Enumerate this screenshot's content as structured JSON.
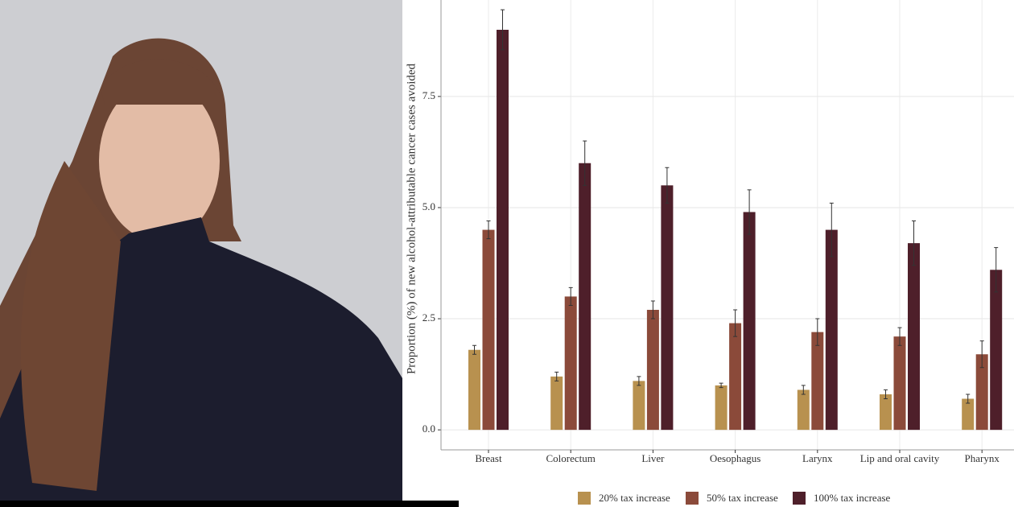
{
  "chart_data": {
    "type": "bar",
    "ylabel": "Proportion (%) of new alcohol-attributable cancer cases avoided",
    "categories": [
      "Breast",
      "Colorectum",
      "Liver",
      "Oesophagus",
      "Larynx",
      "Lip and oral cavity",
      "Pharynx"
    ],
    "series": [
      {
        "name": "20% tax increase",
        "color": "#b8914f",
        "values": [
          1.8,
          1.2,
          1.1,
          1.0,
          0.9,
          0.8,
          0.7
        ],
        "errors": [
          0.1,
          0.1,
          0.1,
          0.05,
          0.1,
          0.1,
          0.1
        ]
      },
      {
        "name": "50% tax increase",
        "color": "#8b4a3a",
        "values": [
          4.5,
          3.0,
          2.7,
          2.4,
          2.2,
          2.1,
          1.7
        ],
        "errors": [
          0.2,
          0.2,
          0.2,
          0.3,
          0.3,
          0.2,
          0.3
        ]
      },
      {
        "name": "100% tax increase",
        "color": "#4e1f2a",
        "values": [
          9.0,
          6.0,
          5.5,
          4.9,
          4.5,
          4.2,
          3.6
        ],
        "errors": [
          0.45,
          0.5,
          0.4,
          0.5,
          0.6,
          0.5,
          0.5
        ]
      }
    ],
    "ylim": [
      -0.45,
      9.67
    ],
    "yticks": [
      {
        "value": 0,
        "label": "0.0"
      },
      2.5,
      {
        "value": 5,
        "label": "5.0"
      },
      7.5
    ],
    "grid": true,
    "legend": "bottom"
  }
}
